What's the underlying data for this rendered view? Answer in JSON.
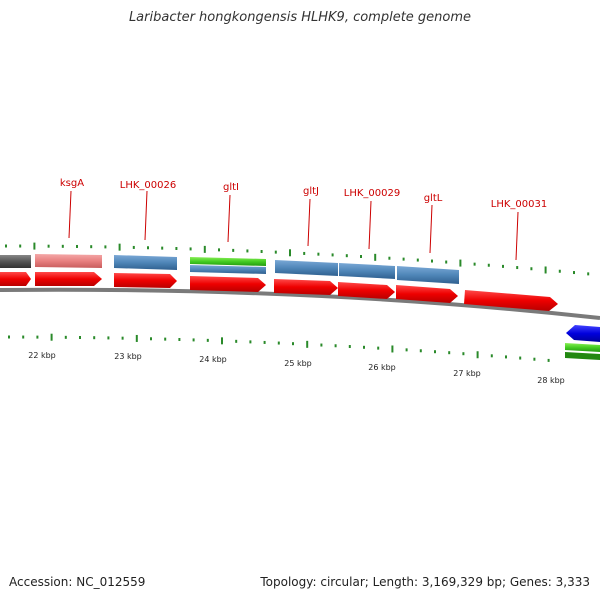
{
  "title": "Laribacter hongkongensis HLHK9, complete genome",
  "footer": {
    "accession": "Accession: NC_012559",
    "summary": "Topology: circular; Length: 3,169,329 bp; Genes: 3,333"
  },
  "colors": {
    "cds": "#ee0000",
    "backbone": "#7a7a7a",
    "tick": "#2a8a2a",
    "label": "#cc0000",
    "steel_blue": "#4f86b8",
    "pink": "#e88080",
    "gray": "#555555",
    "green": "#44cc22",
    "blue": "#0000dd"
  },
  "gene_labels": [
    "ksgA",
    "LHK_00026",
    "gltI",
    "gltJ",
    "LHK_00029",
    "gltL",
    "LHK_00031"
  ],
  "kbp_labels": [
    "22 kbp",
    "23 kbp",
    "24 kbp",
    "25 kbp",
    "26 kbp",
    "27 kbp",
    "28 kbp"
  ]
}
